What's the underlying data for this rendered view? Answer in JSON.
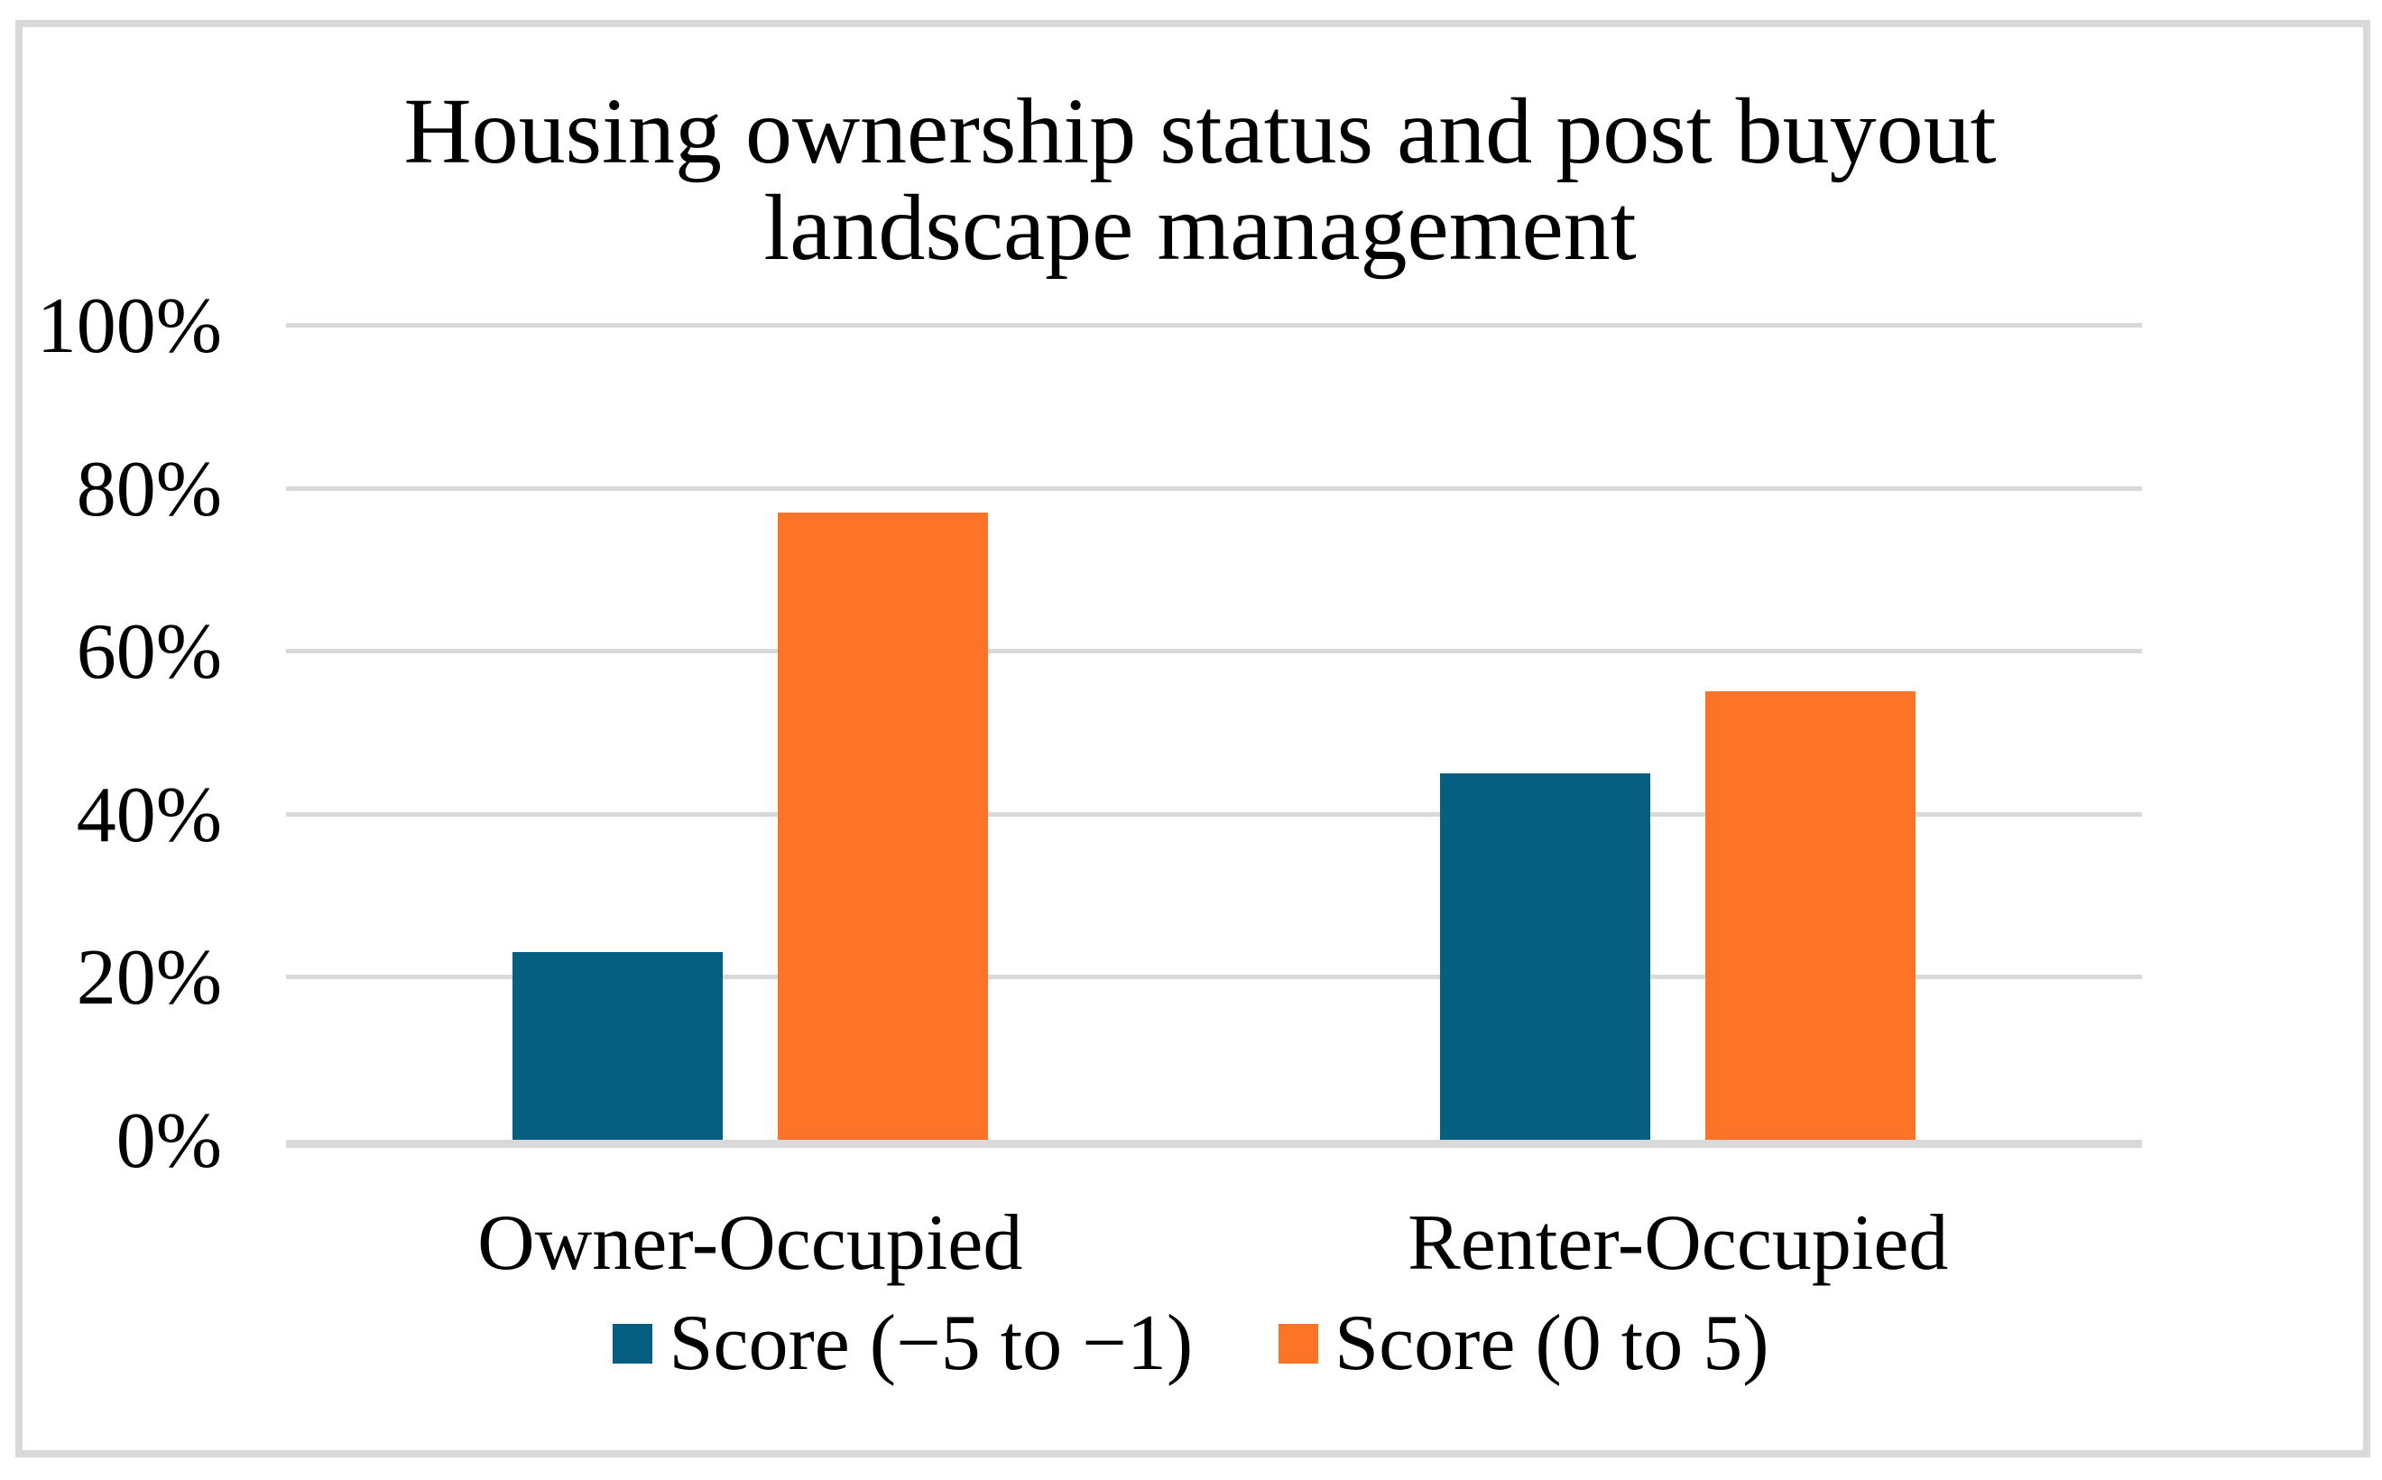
{
  "frame": {
    "border_color": "#D9D9D9",
    "background": "#FFFFFF"
  },
  "chart_data": {
    "type": "bar",
    "title": "Housing ownership status and post buyout landscape management",
    "title_lines": [
      "Housing ownership status and post buyout",
      "landscape management"
    ],
    "categories": [
      "Owner-Occupied",
      "Renter-Occupied"
    ],
    "series": [
      {
        "name": "Score (−5 to −1)",
        "color": "#065F81",
        "values": [
          23,
          45
        ]
      },
      {
        "name": "Score (0 to 5)",
        "color": "#FD7429",
        "values": [
          77,
          55
        ]
      }
    ],
    "xlabel": "",
    "ylabel": "",
    "ylim": [
      0,
      100
    ],
    "ytick_values": [
      0,
      20,
      40,
      60,
      80,
      100
    ],
    "yticks": [
      "0%",
      "20%",
      "40%",
      "60%",
      "80%",
      "100%"
    ],
    "grid": true,
    "gridline_color": "#D9D9D9",
    "legend_position": "bottom",
    "text_color": "#000000"
  }
}
